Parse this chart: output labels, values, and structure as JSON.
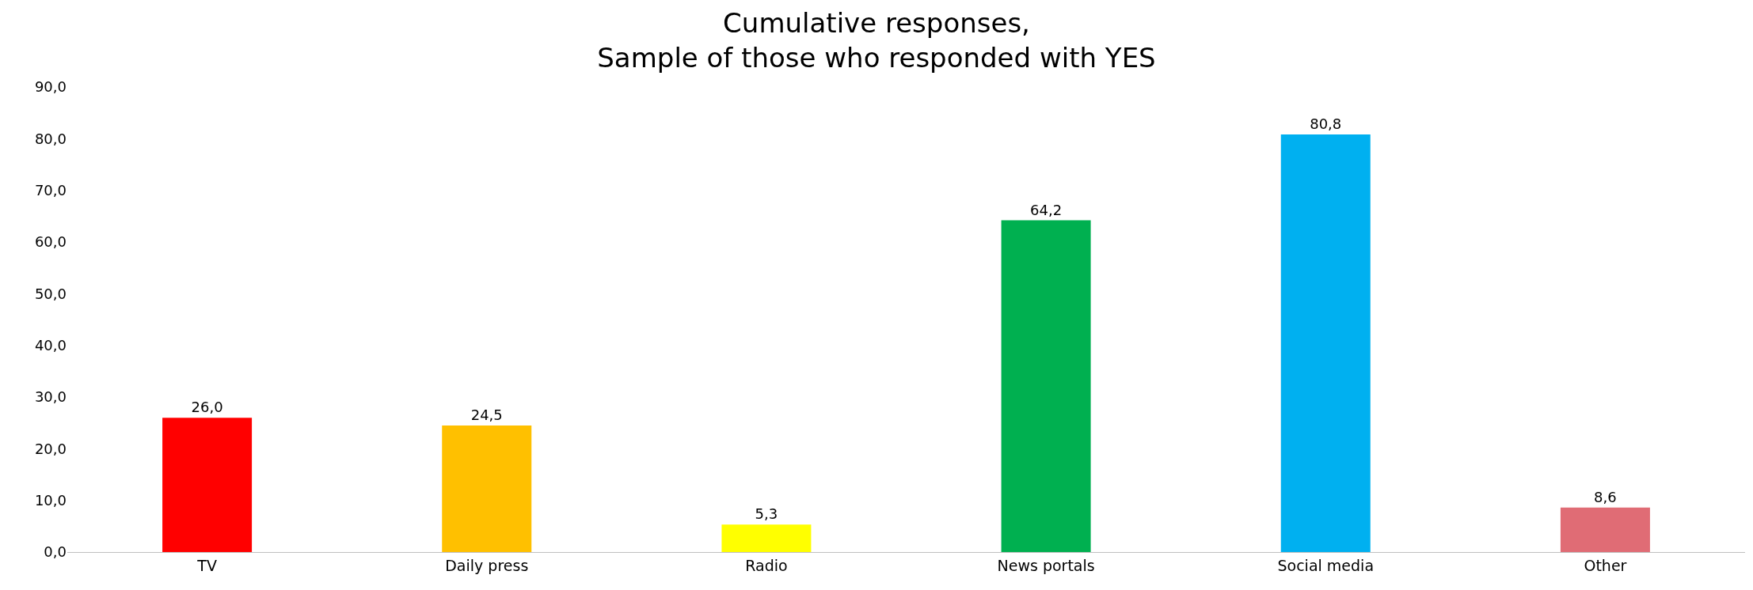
{
  "chart_data": {
    "type": "bar",
    "title": "Cumulative responses,\nSample of those who responded with YES",
    "categories": [
      "TV",
      "Daily press",
      "Radio",
      "News portals",
      "Social media",
      "Other"
    ],
    "values": [
      26.0,
      24.5,
      5.3,
      64.2,
      80.8,
      8.6
    ],
    "value_labels": [
      "26,0",
      "24,5",
      "5,3",
      "64,2",
      "80,8",
      "8,6"
    ],
    "colors": [
      "#ff0000",
      "#ffc000",
      "#ffff00",
      "#00b050",
      "#00b0f0",
      "#e06c75"
    ],
    "ylim": [
      0,
      90
    ],
    "yticks": [
      {
        "value": 0,
        "label": "0,0"
      },
      {
        "value": 10,
        "label": "10,0"
      },
      {
        "value": 20,
        "label": "20,0"
      },
      {
        "value": 30,
        "label": "30,0"
      },
      {
        "value": 40,
        "label": "40,0"
      },
      {
        "value": 50,
        "label": "50,0"
      },
      {
        "value": 60,
        "label": "60,0"
      },
      {
        "value": 70,
        "label": "70,0"
      },
      {
        "value": 80,
        "label": "80,0"
      },
      {
        "value": 90,
        "label": "90,0"
      }
    ],
    "grid": false
  }
}
